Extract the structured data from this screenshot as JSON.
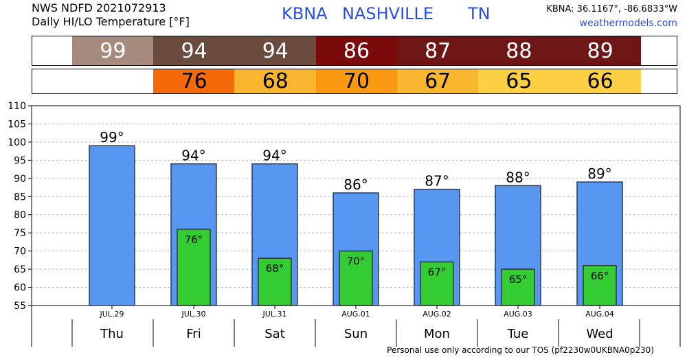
{
  "header": {
    "source_line": "NWS NDFD 2021072913",
    "subtitle_line": "Daily HI/LO Temperature [°F]",
    "station_code": "KBNA",
    "station_name": "NASHVILLE",
    "state": "TN",
    "coords": "KBNA: 36.1167°, -86.6833°W",
    "site": "weathermodels.com"
  },
  "hi_strip": [
    {
      "value": "99",
      "color": "#a68a7e",
      "text_color": "#ffffff"
    },
    {
      "value": "94",
      "color": "#6b4b3e",
      "text_color": "#ffffff"
    },
    {
      "value": "94",
      "color": "#6b4b3e",
      "text_color": "#ffffff"
    },
    {
      "value": "86",
      "color": "#7a0a0a",
      "text_color": "#ffffff"
    },
    {
      "value": "87",
      "color": "#6e1616",
      "text_color": "#ffffff"
    },
    {
      "value": "88",
      "color": "#6e1616",
      "text_color": "#ffffff"
    },
    {
      "value": "89",
      "color": "#6e1616",
      "text_color": "#ffffff"
    }
  ],
  "lo_strip": [
    {
      "value": "",
      "color": "#ffffff",
      "text_color": "#000000"
    },
    {
      "value": "76",
      "color": "#f46a08",
      "text_color": "#000000"
    },
    {
      "value": "68",
      "color": "#f9b52e",
      "text_color": "#000000"
    },
    {
      "value": "70",
      "color": "#fb9a12",
      "text_color": "#000000"
    },
    {
      "value": "67",
      "color": "#f9b52e",
      "text_color": "#000000"
    },
    {
      "value": "65",
      "color": "#fcd042",
      "text_color": "#000000"
    },
    {
      "value": "66",
      "color": "#fcd042",
      "text_color": "#000000"
    }
  ],
  "chart_data": {
    "type": "bar",
    "categories": [
      "JUL.29",
      "JUL.30",
      "JUL.31",
      "AUG.01",
      "AUG.02",
      "AUG.03",
      "AUG.04"
    ],
    "days": [
      "Thu",
      "Fri",
      "Sat",
      "Sun",
      "Mon",
      "Tue",
      "Wed"
    ],
    "series": [
      {
        "values": [
          99,
          94,
          94,
          86,
          87,
          88,
          89
        ],
        "color": "#5797f2",
        "labels": [
          "99°",
          "94°",
          "94°",
          "86°",
          "87°",
          "88°",
          "89°"
        ]
      },
      {
        "values": [
          null,
          76,
          68,
          70,
          67,
          65,
          66
        ],
        "color": "#33cc33",
        "labels": [
          "",
          "76°",
          "68°",
          "70°",
          "67°",
          "65°",
          "66°"
        ]
      }
    ],
    "ylim": [
      55,
      110
    ],
    "yticks": [
      "55",
      "60",
      "65",
      "70",
      "75",
      "80",
      "85",
      "90",
      "95",
      "100",
      "105",
      "110"
    ],
    "grid": true
  },
  "footer": "Personal use only according to our TOS (pf2230w0UKBNA0p230)"
}
